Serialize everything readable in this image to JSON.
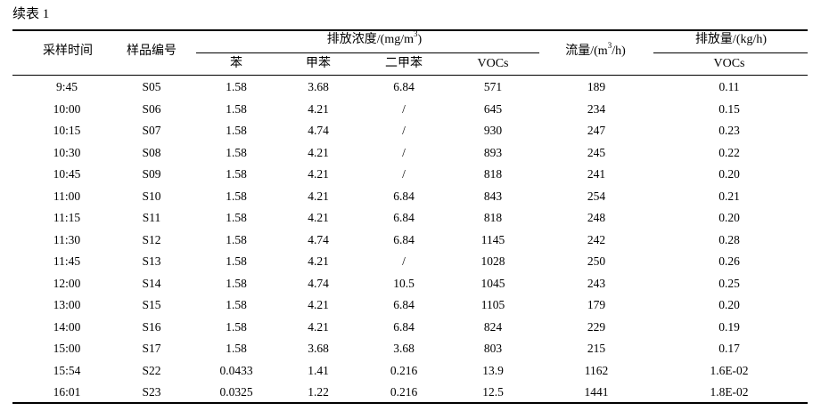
{
  "caption": "续表 1",
  "headers": {
    "time": "采样时间",
    "sample": "样品编号",
    "concentration_group": "排放浓度/(mg/m",
    "concentration_group_sup": "3",
    "concentration_group_tail": ")",
    "benzene": "苯",
    "toluene": "甲苯",
    "xylene": "二甲苯",
    "vocs": "VOCs",
    "flow": "流量/(m",
    "flow_sup": "3",
    "flow_tail": "/h)",
    "emission_group": "排放量/(kg/h)",
    "emission_vocs": "VOCs"
  },
  "rows": [
    [
      "9:45",
      "S05",
      "1.58",
      "3.68",
      "6.84",
      "571",
      "189",
      "0.11"
    ],
    [
      "10:00",
      "S06",
      "1.58",
      "4.21",
      "/",
      "645",
      "234",
      "0.15"
    ],
    [
      "10:15",
      "S07",
      "1.58",
      "4.74",
      "/",
      "930",
      "247",
      "0.23"
    ],
    [
      "10:30",
      "S08",
      "1.58",
      "4.21",
      "/",
      "893",
      "245",
      "0.22"
    ],
    [
      "10:45",
      "S09",
      "1.58",
      "4.21",
      "/",
      "818",
      "241",
      "0.20"
    ],
    [
      "11:00",
      "S10",
      "1.58",
      "4.21",
      "6.84",
      "843",
      "254",
      "0.21"
    ],
    [
      "11:15",
      "S11",
      "1.58",
      "4.21",
      "6.84",
      "818",
      "248",
      "0.20"
    ],
    [
      "11:30",
      "S12",
      "1.58",
      "4.74",
      "6.84",
      "1145",
      "242",
      "0.28"
    ],
    [
      "11:45",
      "S13",
      "1.58",
      "4.21",
      "/",
      "1028",
      "250",
      "0.26"
    ],
    [
      "12:00",
      "S14",
      "1.58",
      "4.74",
      "10.5",
      "1045",
      "243",
      "0.25"
    ],
    [
      "13:00",
      "S15",
      "1.58",
      "4.21",
      "6.84",
      "1105",
      "179",
      "0.20"
    ],
    [
      "14:00",
      "S16",
      "1.58",
      "4.21",
      "6.84",
      "824",
      "229",
      "0.19"
    ],
    [
      "15:00",
      "S17",
      "1.58",
      "3.68",
      "3.68",
      "803",
      "215",
      "0.17"
    ],
    [
      "15:54",
      "S22",
      "0.0433",
      "1.41",
      "0.216",
      "13.9",
      "1162",
      "1.6E-02"
    ],
    [
      "16:01",
      "S23",
      "0.0325",
      "1.22",
      "0.216",
      "12.5",
      "1441",
      "1.8E-02"
    ]
  ]
}
